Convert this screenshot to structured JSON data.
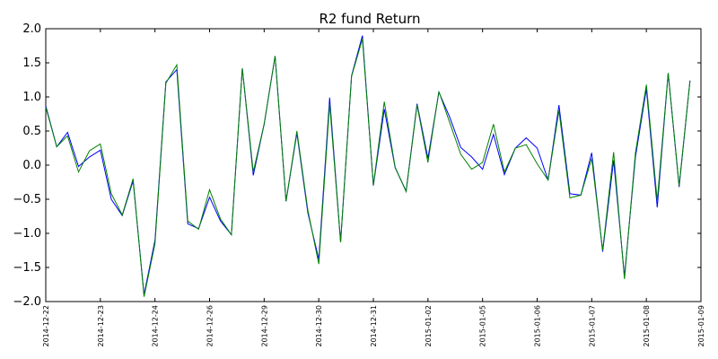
{
  "chart_data": {
    "type": "line",
    "title": "R2 fund Return",
    "xlabel": "",
    "ylabel": "",
    "ylim": [
      -2.0,
      2.0
    ],
    "yticks": [
      -2.0,
      -1.5,
      -1.0,
      -0.5,
      0.0,
      0.5,
      1.0,
      1.5,
      2.0
    ],
    "ytick_labels": [
      "−2.0",
      "−1.5",
      "−1.0",
      "−0.5",
      "0.0",
      "0.5",
      "1.0",
      "1.5",
      "2.0"
    ],
    "xtick_labels": [
      "2014-12-22",
      "2014-12-23",
      "2014-12-24",
      "2014-12-26",
      "2014-12-29",
      "2014-12-30",
      "2014-12-31",
      "2015-01-02",
      "2015-01-05",
      "2015-01-06",
      "2015-01-07",
      "2015-01-08",
      "2015-01-09"
    ],
    "points_per_tick": 5,
    "grid": false,
    "series": [
      {
        "color": "#0000ff",
        "values": [
          0.87,
          0.27,
          0.48,
          -0.02,
          0.12,
          0.22,
          -0.5,
          -0.74,
          -0.23,
          -1.9,
          -1.1,
          1.22,
          1.4,
          -0.86,
          -0.93,
          -0.47,
          -0.82,
          -1.02,
          1.42,
          -0.15,
          0.6,
          1.6,
          -0.53,
          0.47,
          -0.7,
          -1.38,
          0.99,
          -1.13,
          1.31,
          1.9,
          -0.3,
          0.82,
          -0.04,
          -0.38,
          0.9,
          0.1,
          1.07,
          0.7,
          0.26,
          0.12,
          -0.06,
          0.45,
          -0.14,
          0.25,
          0.4,
          0.25,
          -0.22,
          0.88,
          -0.42,
          -0.44,
          0.18,
          -1.27,
          0.07,
          -1.63,
          0.12,
          1.12,
          -0.62,
          1.35,
          -0.32,
          1.24
        ]
      },
      {
        "color": "#008000",
        "values": [
          0.85,
          0.27,
          0.43,
          -0.1,
          0.21,
          0.31,
          -0.42,
          -0.73,
          -0.2,
          -1.93,
          -1.15,
          1.2,
          1.47,
          -0.82,
          -0.94,
          -0.36,
          -0.79,
          -1.02,
          1.42,
          -0.1,
          0.6,
          1.6,
          -0.53,
          0.5,
          -0.66,
          -1.45,
          0.9,
          -1.13,
          1.3,
          1.85,
          -0.29,
          0.93,
          -0.03,
          -0.39,
          0.88,
          0.04,
          1.08,
          0.62,
          0.16,
          -0.06,
          0.04,
          0.6,
          -0.1,
          0.25,
          0.3,
          0.02,
          -0.22,
          0.8,
          -0.48,
          -0.44,
          0.1,
          -1.25,
          0.19,
          -1.67,
          0.18,
          1.18,
          -0.52,
          1.35,
          -0.3,
          1.24
        ]
      }
    ]
  }
}
